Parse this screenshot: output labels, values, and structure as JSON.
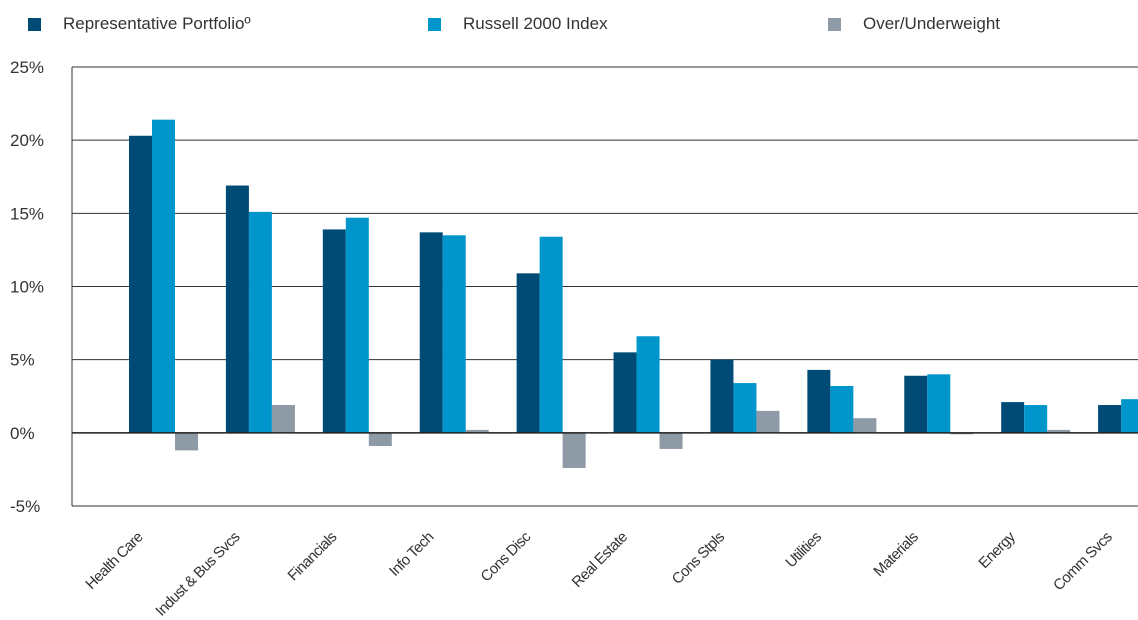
{
  "chart_data": {
    "type": "bar",
    "categories": [
      "Health Care",
      "Indust & Bus Svcs",
      "Financials",
      "Info Tech",
      "Cons Disc",
      "Real Estate",
      "Cons Stpls",
      "Utilities",
      "Materials",
      "Energy",
      "Comm Svcs"
    ],
    "series": [
      {
        "name": "Representative Portfolioº",
        "color": "#004a76",
        "values": [
          20.3,
          16.9,
          13.9,
          13.7,
          10.9,
          5.5,
          5.0,
          4.3,
          3.9,
          2.1,
          1.9
        ]
      },
      {
        "name": "Russell 2000 Index",
        "color": "#0096cc",
        "values": [
          21.4,
          15.1,
          14.7,
          13.5,
          13.4,
          6.6,
          3.4,
          3.2,
          4.0,
          1.9,
          2.3
        ]
      },
      {
        "name": "Over/Underweight",
        "color": "#8e9aa6",
        "values": [
          -1.2,
          1.9,
          -0.9,
          0.2,
          -2.4,
          -1.1,
          1.5,
          1.0,
          -0.1,
          0.2,
          -0.4
        ]
      }
    ],
    "y_ticks": [
      "25%",
      "20%",
      "15%",
      "10%",
      "5%",
      "0%",
      "-5%"
    ],
    "ylim": [
      -5,
      25
    ],
    "title": "",
    "xlabel": "",
    "ylabel": "",
    "grid": "horizontal",
    "legend": "top"
  }
}
